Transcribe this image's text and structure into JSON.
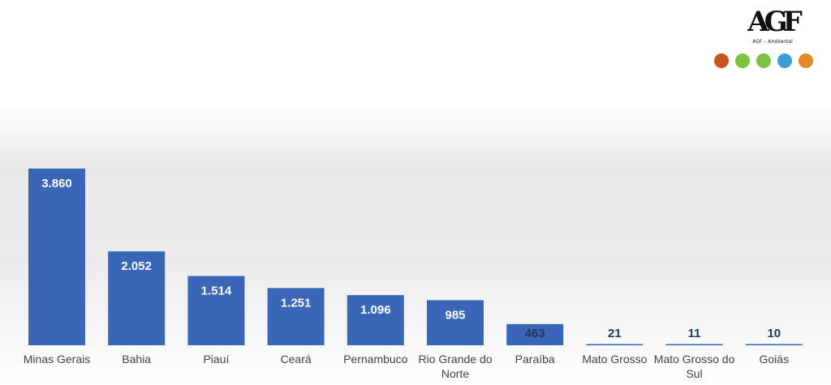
{
  "logo": {
    "mark": "AGF",
    "subtitle": "AGF – Ambiental"
  },
  "icons": [
    {
      "name": "seedling-icon",
      "color": "#c9541f"
    },
    {
      "name": "energy-icon",
      "color": "#7cc242"
    },
    {
      "name": "recycle-bin-icon",
      "color": "#7cc242"
    },
    {
      "name": "water-icon",
      "color": "#3b9dd8"
    },
    {
      "name": "home-eco-icon",
      "color": "#e08a2a"
    }
  ],
  "chart_data": {
    "type": "bar",
    "categories": [
      "Minas Gerais",
      "Bahia",
      "Piauí",
      "Ceará",
      "Pernambuco",
      "Rio Grande do Norte",
      "Paraíba",
      "Mato Grosso",
      "Mato Grosso do Sul",
      "Goiás"
    ],
    "values": [
      3860,
      2052,
      1514,
      1251,
      1096,
      985,
      463,
      21,
      11,
      10
    ],
    "data_labels": [
      "3.860",
      "2.052",
      "1.514",
      "1.251",
      "1.096",
      "985",
      "463",
      "21",
      "11",
      "10"
    ],
    "bar_color": "#3a66b8",
    "label_color_inside": "#ffffff",
    "label_color_outside": "#1f3864",
    "title": "",
    "xlabel": "",
    "ylabel": "",
    "ylim": [
      0,
      3860
    ],
    "grid": false,
    "legend": "none"
  }
}
